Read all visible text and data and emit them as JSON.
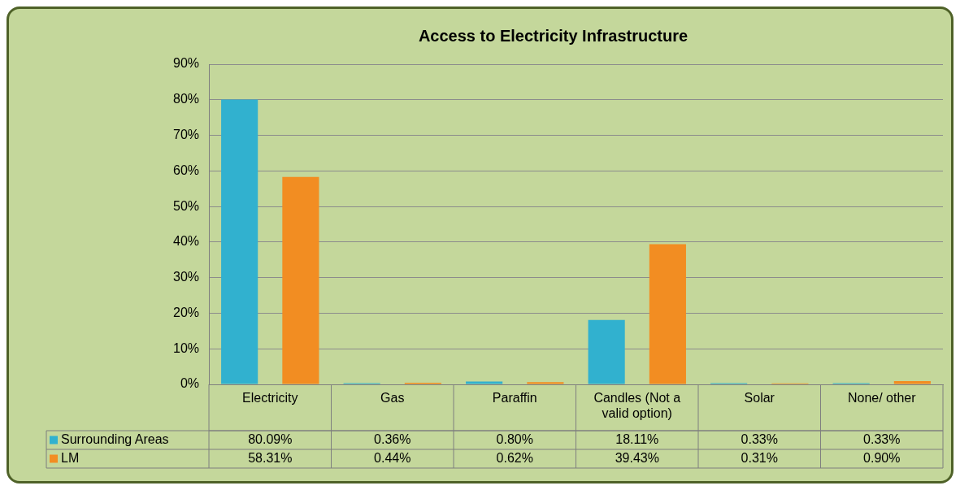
{
  "chart_data": {
    "type": "bar",
    "title": "Access to Electricity Infrastructure",
    "categories": [
      "Electricity",
      "Gas",
      "Paraffin",
      "Candles (Not a valid option)",
      "Solar",
      "None/ other"
    ],
    "series": [
      {
        "name": "Surrounding Areas",
        "color": "#31b1cf",
        "values": [
          80.09,
          0.36,
          0.8,
          18.11,
          0.33,
          0.33
        ],
        "value_labels": [
          "80.09%",
          "0.36%",
          "0.80%",
          "18.11%",
          "0.33%",
          "0.33%"
        ]
      },
      {
        "name": "LM",
        "color": "#f28d22",
        "values": [
          58.31,
          0.44,
          0.62,
          39.43,
          0.31,
          0.9
        ],
        "value_labels": [
          "58.31%",
          "0.44%",
          "0.62%",
          "39.43%",
          "0.31%",
          "0.90%"
        ]
      }
    ],
    "ylim": [
      0,
      90
    ],
    "yticks": [
      {
        "value": 0,
        "label": "0%"
      },
      {
        "value": 10,
        "label": "10%"
      },
      {
        "value": 20,
        "label": "20%"
      },
      {
        "value": 30,
        "label": "30%"
      },
      {
        "value": 40,
        "label": "40%"
      },
      {
        "value": 50,
        "label": "50%"
      },
      {
        "value": 60,
        "label": "60%"
      },
      {
        "value": 70,
        "label": "70%"
      },
      {
        "value": 80,
        "label": "80%"
      },
      {
        "value": 90,
        "label": "90%"
      }
    ],
    "grid": "y",
    "legend": "bottom left"
  }
}
